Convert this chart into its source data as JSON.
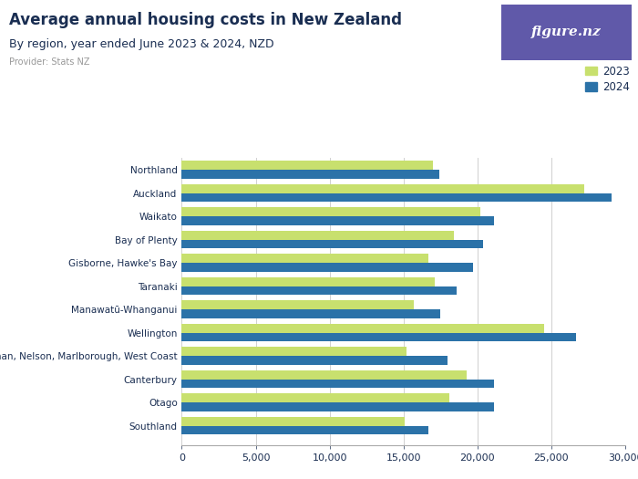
{
  "title": "Average annual housing costs in New Zealand",
  "subtitle": "By region, year ended June 2023 & 2024, NZD",
  "provider": "Provider: Stats NZ",
  "regions": [
    "Northland",
    "Auckland",
    "Waikato",
    "Bay of Plenty",
    "Gisborne, Hawke's Bay",
    "Taranaki",
    "Manawatū-Whanganui",
    "Wellington",
    "Tasman, Nelson, Marlborough, West Coast",
    "Canterbury",
    "Otago",
    "Southland"
  ],
  "values_2023": [
    17000,
    27200,
    20200,
    18400,
    16700,
    17100,
    15700,
    24500,
    15200,
    19300,
    18100,
    15100
  ],
  "values_2024": [
    17400,
    29100,
    21100,
    20400,
    19700,
    18600,
    17500,
    26700,
    18000,
    21100,
    21100,
    16700
  ],
  "color_2023": "#c8e06e",
  "color_2024": "#2b72a8",
  "xlim": [
    0,
    30000
  ],
  "xticks": [
    0,
    5000,
    10000,
    15000,
    20000,
    25000,
    30000
  ],
  "background_color": "#ffffff",
  "grid_color": "#d0d0d0",
  "title_color": "#1a2e52",
  "subtitle_color": "#1a2e52",
  "provider_color": "#999999",
  "label_color": "#1a2e52",
  "logo_bg": "#6059a9",
  "logo_text": "figure.nz",
  "bar_height": 0.38,
  "figsize": [
    7.0,
    5.25
  ],
  "dpi": 100
}
